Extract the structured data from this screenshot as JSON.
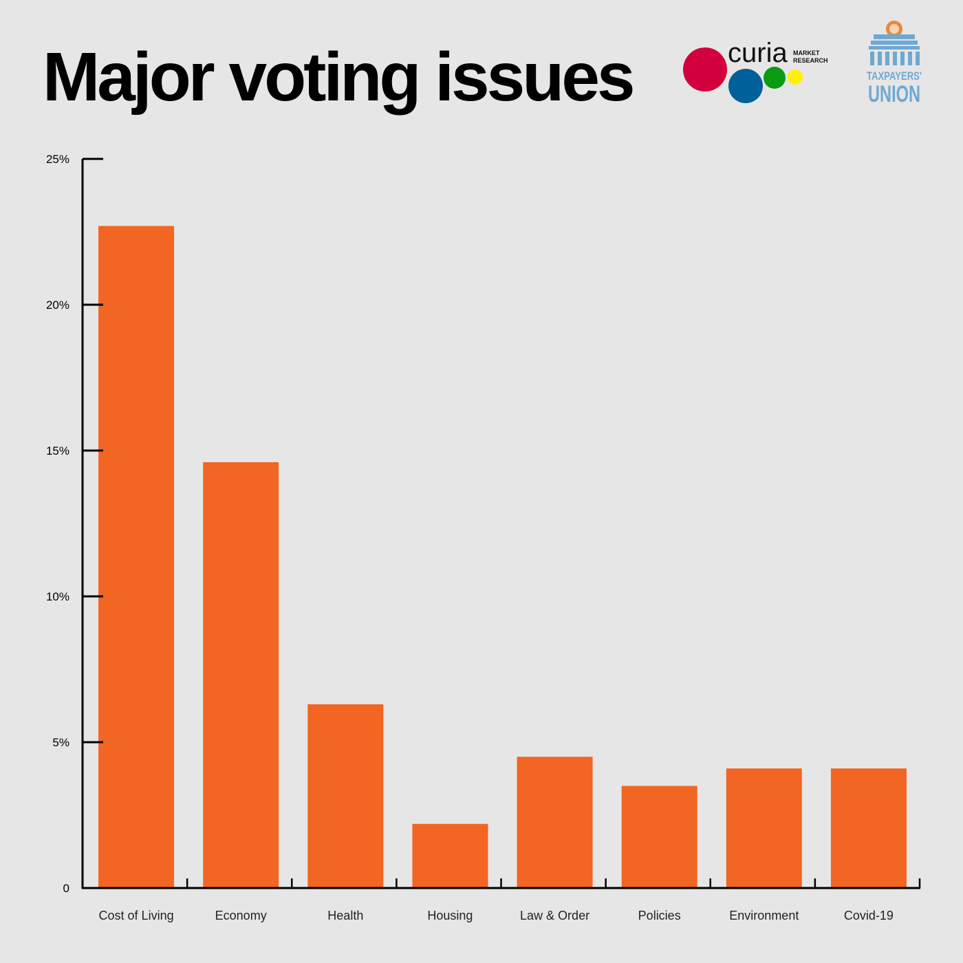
{
  "header": {
    "title": "Major voting issues"
  },
  "logos": {
    "curia": {
      "wordmark": "curia",
      "tag_line1": "MARKET",
      "tag_line2": "RESEARCH"
    },
    "taxpayers_union": {
      "line1": "TAXPAYERS'",
      "line2": "UNION"
    }
  },
  "colors": {
    "bar": "#f26522",
    "axis": "#000000",
    "background": "#e6e6e6",
    "curia_red": "#d2003c",
    "curia_blue": "#00609a",
    "curia_green": "#0a9b14",
    "curia_yellow": "#fff200",
    "tu_blue": "#6fa8d2",
    "tu_orange": "#e8893a"
  },
  "chart_data": {
    "type": "bar",
    "title": "Major voting issues",
    "xlabel": "",
    "ylabel": "",
    "categories": [
      "Cost of Living",
      "Economy",
      "Health",
      "Housing",
      "Law & Order",
      "Policies",
      "Environment",
      "Covid-19"
    ],
    "values": [
      22.7,
      14.6,
      6.3,
      2.2,
      4.5,
      3.5,
      4.1,
      4.1
    ],
    "ylim": [
      0,
      25
    ],
    "yticks": [
      0,
      5,
      10,
      15,
      20,
      25
    ],
    "ytick_labels": [
      "0",
      "5%",
      "10%",
      "15%",
      "20%",
      "25%"
    ],
    "grid": false,
    "legend": "none"
  }
}
